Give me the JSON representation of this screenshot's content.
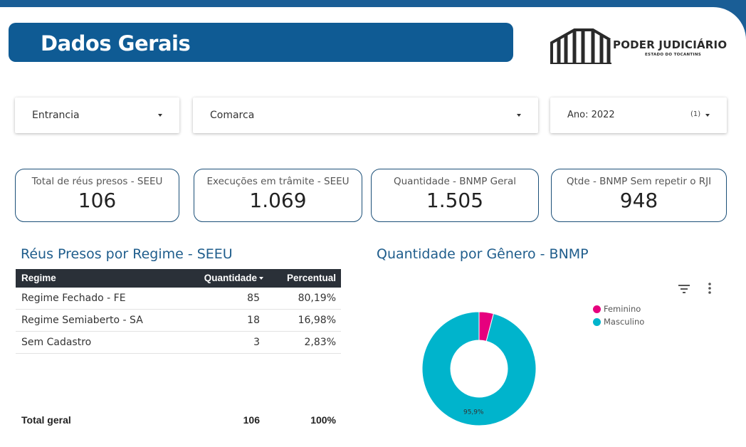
{
  "header": {
    "title": "Dados Gerais",
    "logo_text": "PODER JUDICIÁRIO",
    "logo_subtext": "ESTADO DO TOCANTINS"
  },
  "filters": {
    "entrancia": "Entrancia",
    "comarca": "Comarca",
    "ano_label": "Ano: 2022",
    "ano_count": "(1)"
  },
  "kpis": [
    {
      "label": "Total de réus presos - SEEU",
      "value": "106"
    },
    {
      "label": "Execuções em trâmite - SEEU",
      "value": "1.069"
    },
    {
      "label": "Quantidade - BNMP Geral",
      "value": "1.505"
    },
    {
      "label": "Qtde - BNMP Sem repetir o RJI",
      "value": "948"
    }
  ],
  "table": {
    "title": "Réus Presos por Regime - SEEU",
    "headers": {
      "regime": "Regime",
      "quantidade": "Quantidade",
      "percentual": "Percentual"
    },
    "rows": [
      {
        "regime": "Regime Fechado - FE",
        "quantidade": "85",
        "percentual": "80,19%"
      },
      {
        "regime": "Regime Semiaberto - SA",
        "quantidade": "18",
        "percentual": "16,98%"
      },
      {
        "regime": "Sem Cadastro",
        "quantidade": "3",
        "percentual": "2,83%"
      }
    ],
    "total": {
      "label": "Total geral",
      "quantidade": "106",
      "percentual": "100%"
    }
  },
  "chart_data": {
    "type": "pie",
    "title": "Quantidade por Gênero - BNMP",
    "categories": [
      "Feminino",
      "Masculino"
    ],
    "values": [
      4.1,
      95.9
    ],
    "data_labels": [
      "",
      "95,9%"
    ],
    "colors": [
      "#e6007e",
      "#00b4cc"
    ],
    "donut": true,
    "legend": "top-right"
  },
  "icons": {
    "filter": "filter-icon",
    "more": "more-vert-icon"
  }
}
